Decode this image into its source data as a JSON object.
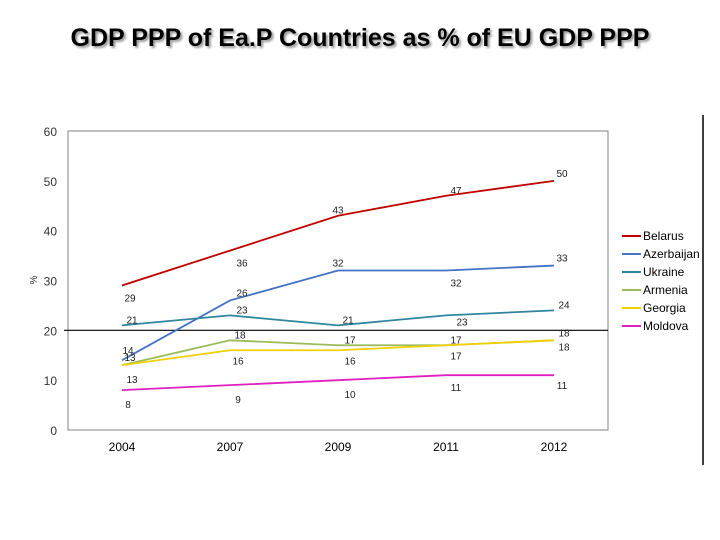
{
  "chart_data": {
    "type": "line",
    "title": "GDP PPP of Ea.P Countries as % of EU GDP PPP",
    "xlabel": "",
    "ylabel": "%",
    "categories": [
      "2004",
      "2007",
      "2009",
      "2011",
      "2012"
    ],
    "ylim": [
      0,
      60
    ],
    "yticks": [
      0,
      10,
      20,
      30,
      40,
      50,
      60
    ],
    "reference_line": 20,
    "grid": false,
    "legend_position": "right",
    "series": [
      {
        "name": "Belarus",
        "color": "#c00000",
        "values": [
          29,
          36,
          43,
          47,
          50
        ]
      },
      {
        "name": "Azerbaijan",
        "color": "#4472c4",
        "values": [
          14,
          26,
          32,
          32,
          33
        ]
      },
      {
        "name": "Ukraine",
        "color": "#31859c",
        "values": [
          21,
          23,
          21,
          23,
          24
        ]
      },
      {
        "name": "Armenia",
        "color": "#9bbb59",
        "values": [
          13,
          18,
          17,
          17,
          18
        ]
      },
      {
        "name": "Georgia",
        "color": "#f0d000",
        "values": [
          13,
          16,
          16,
          17,
          18
        ]
      },
      {
        "name": "Moldova",
        "color": "#e020c0",
        "values": [
          8,
          9,
          10,
          11,
          11
        ]
      }
    ]
  }
}
